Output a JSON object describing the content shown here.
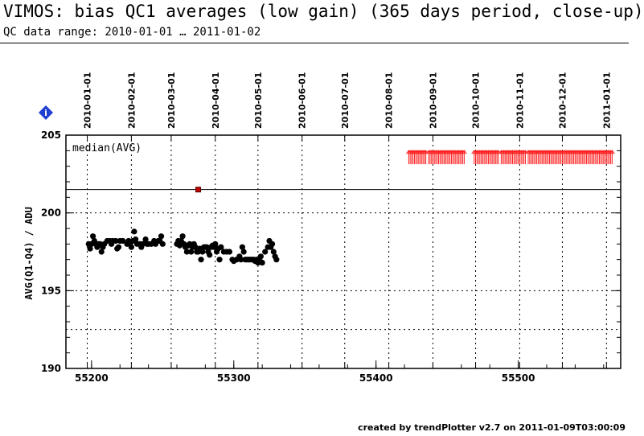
{
  "header": {
    "title": "VIMOS: bias QC1 averages (low gain) (365 days period, close-up)",
    "subtitle": "QC data range: 2010-01-01 … 2011-01-02"
  },
  "footer": {
    "credit": "created by trendPlotter v2.7 on 2011-01-09T03:00:09"
  },
  "info_icon": {
    "name": "info-icon",
    "color": "#1f3fd1",
    "text": "i"
  },
  "colors": {
    "main_series": "#000000",
    "outlier": "#c00000",
    "excluded": "#ff2020",
    "grid": "#000000",
    "reference_line": "#000000"
  },
  "chart_data": {
    "type": "scatter",
    "title": "",
    "xlabel": "",
    "ylabel": "AVG(Q1-Q4) / ADU",
    "panel_label": "median(AVG)",
    "xlim": [
      55182,
      55572
    ],
    "ylim": [
      190,
      205
    ],
    "x_ticks": [
      55200,
      55300,
      55400,
      55500
    ],
    "x_tick_labels": [
      "55200",
      "55300",
      "55400",
      "55500"
    ],
    "y_ticks": [
      190,
      195,
      200,
      205
    ],
    "y_tick_labels": [
      "190",
      "195",
      "200",
      "205"
    ],
    "top_axis": {
      "type": "dates",
      "labels": [
        "2010-01-01",
        "2010-02-01",
        "2010-03-01",
        "2010-04-01",
        "2010-05-01",
        "2010-06-01",
        "2010-07-01",
        "2010-08-01",
        "2010-09-01",
        "2010-10-01",
        "2010-11-01",
        "2010-12-01",
        "2011-01-01"
      ],
      "mjd": [
        55197,
        55228,
        55256,
        55287,
        55317,
        55348,
        55378,
        55409,
        55440,
        55470,
        55501,
        55531,
        55562
      ]
    },
    "grid": "dotted",
    "reference_lines": [
      201.5
    ],
    "dotted_levels": [
      192.5
    ],
    "series": [
      {
        "role": "data",
        "marker": "circle",
        "color": "#000000",
        "x": [
          55198,
          55199,
          55200,
          55201,
          55202,
          55203,
          55204,
          55205,
          55206,
          55207,
          55208,
          55209,
          55211,
          55213,
          55214,
          55215,
          55217,
          55218,
          55219,
          55220,
          55222,
          55225,
          55226,
          55227,
          55228,
          55229,
          55230,
          55231,
          55232,
          55234,
          55235,
          55236,
          55238,
          55239,
          55240,
          55242,
          55244,
          55245,
          55247,
          55248,
          55249,
          55250,
          55260,
          55261,
          55262,
          55263,
          55264,
          55265,
          55266,
          55267,
          55268,
          55269,
          55270,
          55271,
          55272,
          55273,
          55274,
          55275,
          55276,
          55277,
          55278,
          55279,
          55280,
          55281,
          55282,
          55283,
          55284,
          55285,
          55286,
          55287,
          55288,
          55289,
          55290,
          55291,
          55293,
          55295,
          55297,
          55299,
          55300,
          55302,
          55304,
          55305,
          55306,
          55307,
          55308,
          55309,
          55310,
          55311,
          55312,
          55313,
          55314,
          55315,
          55316,
          55317,
          55318,
          55319,
          55320,
          55322,
          55324,
          55325,
          55326,
          55327,
          55328,
          55329,
          55330
        ],
        "y": [
          198.0,
          197.7,
          198.0,
          198.5,
          198.2,
          198.0,
          197.8,
          198.0,
          198.0,
          197.5,
          197.8,
          198.0,
          198.2,
          198.2,
          198.0,
          198.2,
          198.2,
          197.7,
          197.8,
          198.2,
          198.2,
          198.0,
          198.2,
          198.0,
          197.8,
          198.2,
          198.8,
          198.3,
          198.0,
          198.0,
          197.8,
          198.0,
          198.3,
          198.0,
          198.0,
          198.0,
          198.2,
          198.0,
          198.2,
          198.2,
          198.5,
          198.0,
          198.0,
          198.2,
          197.9,
          198.2,
          198.5,
          198.0,
          197.8,
          197.5,
          197.9,
          198.0,
          197.5,
          197.8,
          198.0,
          197.8,
          197.5,
          197.5,
          197.7,
          197.0,
          197.5,
          197.8,
          197.8,
          197.8,
          197.5,
          197.3,
          197.8,
          197.9,
          197.8,
          198.0,
          197.5,
          197.7,
          197.0,
          197.8,
          197.5,
          197.5,
          197.5,
          197.0,
          196.9,
          197.0,
          197.2,
          197.0,
          197.8,
          197.5,
          197.0,
          197.0,
          197.0,
          197.0,
          197.0,
          197.0,
          197.0,
          196.9,
          197.0,
          196.8,
          197.0,
          197.2,
          196.8,
          197.5,
          197.8,
          198.2,
          197.8,
          198.0,
          197.5,
          197.2,
          197.0
        ]
      },
      {
        "role": "outlier",
        "marker": "square",
        "color": "#c00000",
        "x": [
          55275
        ],
        "y": [
          201.5
        ]
      },
      {
        "role": "excluded",
        "marker": "arrow-up",
        "color": "#ff2020",
        "y": 203.6,
        "x": [
          55423,
          55424,
          55425,
          55426,
          55427,
          55428,
          55429,
          55430,
          55431,
          55432,
          55433,
          55434,
          55435,
          55437,
          55438,
          55439,
          55440,
          55441,
          55442,
          55443,
          55444,
          55445,
          55446,
          55447,
          55448,
          55449,
          55450,
          55451,
          55452,
          55453,
          55454,
          55455,
          55456,
          55457,
          55458,
          55459,
          55460,
          55461,
          55462,
          55469,
          55470,
          55471,
          55472,
          55473,
          55474,
          55475,
          55476,
          55477,
          55478,
          55479,
          55480,
          55481,
          55482,
          55483,
          55484,
          55485,
          55486,
          55488,
          55489,
          55490,
          55491,
          55492,
          55493,
          55494,
          55495,
          55496,
          55497,
          55498,
          55499,
          55500,
          55501,
          55502,
          55503,
          55504,
          55505,
          55507,
          55508,
          55509,
          55510,
          55511,
          55512,
          55513,
          55514,
          55515,
          55516,
          55517,
          55518,
          55519,
          55520,
          55521,
          55522,
          55523,
          55524,
          55525,
          55526,
          55527,
          55528,
          55529,
          55530,
          55531,
          55532,
          55533,
          55534,
          55535,
          55536,
          55537,
          55538,
          55539,
          55540,
          55541,
          55542,
          55543,
          55544,
          55545,
          55546,
          55547,
          55548,
          55549,
          55550,
          55551,
          55552,
          55553,
          55554,
          55555,
          55556,
          55557,
          55558,
          55559,
          55560,
          55561,
          55562,
          55563,
          55564,
          55565,
          55566
        ]
      }
    ]
  }
}
